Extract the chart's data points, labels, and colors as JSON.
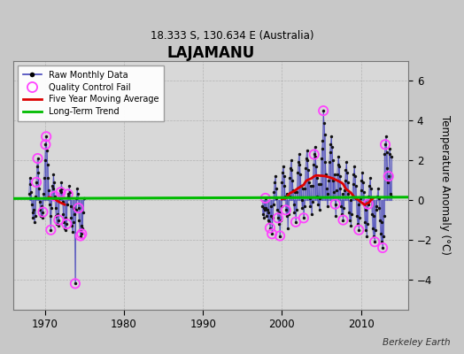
{
  "title": "LAJAMANU",
  "subtitle": "18.333 S, 130.634 E (Australia)",
  "ylabel": "Temperature Anomaly (°C)",
  "credit": "Berkeley Earth",
  "xlim": [
    1966,
    2016
  ],
  "ylim": [
    -5.5,
    7.0
  ],
  "yticks": [
    -4,
    -2,
    0,
    2,
    4,
    6
  ],
  "xticks": [
    1970,
    1980,
    1990,
    2000,
    2010
  ],
  "fig_bg": "#c8c8c8",
  "plot_bg": "#d8d8d8",
  "line_color": "#4444bb",
  "dot_color": "#111111",
  "qc_color": "#ff44ff",
  "ma_color": "#dd0000",
  "trend_color": "#00bb00",
  "early_data": [
    [
      1968.0,
      0.3
    ],
    [
      1968.083,
      1.1
    ],
    [
      1968.167,
      0.8
    ],
    [
      1968.25,
      0.4
    ],
    [
      1968.333,
      -0.2
    ],
    [
      1968.417,
      -0.6
    ],
    [
      1968.5,
      -0.9
    ],
    [
      1968.583,
      -0.5
    ],
    [
      1968.667,
      -1.1
    ],
    [
      1968.75,
      -0.8
    ],
    [
      1968.833,
      0.2
    ],
    [
      1968.917,
      0.9
    ],
    [
      1969.0,
      1.7
    ],
    [
      1969.083,
      2.1
    ],
    [
      1969.167,
      1.4
    ],
    [
      1969.25,
      0.6
    ],
    [
      1969.333,
      -0.1
    ],
    [
      1969.417,
      -0.5
    ],
    [
      1969.5,
      -0.8
    ],
    [
      1969.583,
      -0.3
    ],
    [
      1969.667,
      -0.9
    ],
    [
      1969.75,
      -0.6
    ],
    [
      1969.833,
      0.3
    ],
    [
      1969.917,
      1.1
    ],
    [
      1970.0,
      2.0
    ],
    [
      1970.083,
      2.8
    ],
    [
      1970.167,
      3.2
    ],
    [
      1970.25,
      2.5
    ],
    [
      1970.333,
      1.8
    ],
    [
      1970.417,
      1.1
    ],
    [
      1970.5,
      0.5
    ],
    [
      1970.583,
      -0.2
    ],
    [
      1970.667,
      -0.8
    ],
    [
      1970.75,
      -1.5
    ],
    [
      1970.833,
      -0.4
    ],
    [
      1970.917,
      0.7
    ],
    [
      1971.0,
      0.6
    ],
    [
      1971.083,
      1.3
    ],
    [
      1971.167,
      0.9
    ],
    [
      1971.25,
      0.2
    ],
    [
      1971.333,
      -0.4
    ],
    [
      1971.417,
      -0.8
    ],
    [
      1971.5,
      -1.2
    ],
    [
      1971.583,
      -0.7
    ],
    [
      1971.667,
      -1.3
    ],
    [
      1971.75,
      -1.0
    ],
    [
      1971.833,
      0.1
    ],
    [
      1971.917,
      0.5
    ],
    [
      1972.0,
      0.4
    ],
    [
      1972.083,
      0.9
    ],
    [
      1972.167,
      0.6
    ],
    [
      1972.25,
      -0.1
    ],
    [
      1972.333,
      -0.7
    ],
    [
      1972.417,
      -1.1
    ],
    [
      1972.5,
      -1.4
    ],
    [
      1972.583,
      -0.9
    ],
    [
      1972.667,
      -1.5
    ],
    [
      1972.75,
      -1.2
    ],
    [
      1972.833,
      -0.2
    ],
    [
      1972.917,
      0.3
    ],
    [
      1973.0,
      0.2
    ],
    [
      1973.083,
      0.7
    ],
    [
      1973.167,
      0.4
    ],
    [
      1973.25,
      -0.3
    ],
    [
      1973.333,
      -0.9
    ],
    [
      1973.417,
      -1.3
    ],
    [
      1973.5,
      -1.6
    ],
    [
      1973.583,
      -1.1
    ],
    [
      1973.667,
      -0.4
    ],
    [
      1973.75,
      -0.7
    ],
    [
      1973.833,
      -4.2
    ],
    [
      1973.917,
      -0.5
    ],
    [
      1974.0,
      0.1
    ],
    [
      1974.083,
      0.6
    ],
    [
      1974.167,
      0.3
    ],
    [
      1974.25,
      -0.4
    ],
    [
      1974.333,
      -1.0
    ],
    [
      1974.417,
      -1.5
    ],
    [
      1974.5,
      -1.8
    ],
    [
      1974.583,
      -1.3
    ],
    [
      1974.667,
      -1.7
    ],
    [
      1974.75,
      -1.4
    ],
    [
      1974.833,
      -0.6
    ],
    [
      1974.917,
      0.1
    ]
  ],
  "late_data": [
    [
      1997.5,
      -0.3
    ],
    [
      1997.583,
      -0.7
    ],
    [
      1997.667,
      -0.4
    ],
    [
      1997.75,
      -0.9
    ],
    [
      1997.833,
      -0.5
    ],
    [
      1997.917,
      0.1
    ],
    [
      1998.0,
      -0.4
    ],
    [
      1998.083,
      -0.8
    ],
    [
      1998.167,
      -0.5
    ],
    [
      1998.25,
      -1.0
    ],
    [
      1998.333,
      -0.6
    ],
    [
      1998.417,
      -1.1
    ],
    [
      1998.5,
      -1.4
    ],
    [
      1998.583,
      -0.8
    ],
    [
      1998.667,
      -0.3
    ],
    [
      1998.75,
      -1.7
    ],
    [
      1998.833,
      -0.9
    ],
    [
      1998.917,
      -0.2
    ],
    [
      1999.0,
      0.4
    ],
    [
      1999.083,
      0.9
    ],
    [
      1999.167,
      1.2
    ],
    [
      1999.25,
      0.6
    ],
    [
      1999.333,
      0.1
    ],
    [
      1999.417,
      -0.5
    ],
    [
      1999.5,
      -0.9
    ],
    [
      1999.583,
      -1.2
    ],
    [
      1999.667,
      -0.6
    ],
    [
      1999.75,
      -1.8
    ],
    [
      1999.833,
      -1.0
    ],
    [
      1999.917,
      -0.3
    ],
    [
      2000.0,
      0.9
    ],
    [
      2000.083,
      1.4
    ],
    [
      2000.167,
      1.7
    ],
    [
      2000.25,
      1.2
    ],
    [
      2000.333,
      0.7
    ],
    [
      2000.417,
      0.2
    ],
    [
      2000.5,
      -0.5
    ],
    [
      2000.583,
      -0.8
    ],
    [
      2000.667,
      0.3
    ],
    [
      2000.75,
      -1.4
    ],
    [
      2000.833,
      -0.7
    ],
    [
      2000.917,
      0.2
    ],
    [
      2001.0,
      1.1
    ],
    [
      2001.083,
      1.6
    ],
    [
      2001.167,
      2.0
    ],
    [
      2001.25,
      1.5
    ],
    [
      2001.333,
      1.0
    ],
    [
      2001.417,
      0.5
    ],
    [
      2001.5,
      -0.2
    ],
    [
      2001.583,
      -0.6
    ],
    [
      2001.667,
      0.4
    ],
    [
      2001.75,
      -1.1
    ],
    [
      2001.833,
      -0.5
    ],
    [
      2001.917,
      0.4
    ],
    [
      2002.0,
      1.4
    ],
    [
      2002.083,
      1.9
    ],
    [
      2002.167,
      2.3
    ],
    [
      2002.25,
      1.8
    ],
    [
      2002.333,
      1.3
    ],
    [
      2002.417,
      0.7
    ],
    [
      2002.5,
      0.0
    ],
    [
      2002.583,
      -0.4
    ],
    [
      2002.667,
      0.6
    ],
    [
      2002.75,
      -0.9
    ],
    [
      2002.833,
      -0.3
    ],
    [
      2002.917,
      0.6
    ],
    [
      2003.0,
      1.6
    ],
    [
      2003.083,
      2.1
    ],
    [
      2003.167,
      2.5
    ],
    [
      2003.25,
      2.0
    ],
    [
      2003.333,
      1.5
    ],
    [
      2003.417,
      0.9
    ],
    [
      2003.5,
      0.1
    ],
    [
      2003.583,
      -0.3
    ],
    [
      2003.667,
      0.7
    ],
    [
      2003.75,
      -0.7
    ],
    [
      2003.833,
      -0.1
    ],
    [
      2003.917,
      0.7
    ],
    [
      2004.0,
      1.8
    ],
    [
      2004.083,
      2.3
    ],
    [
      2004.167,
      2.7
    ],
    [
      2004.25,
      2.2
    ],
    [
      2004.333,
      1.7
    ],
    [
      2004.417,
      1.1
    ],
    [
      2004.5,
      0.2
    ],
    [
      2004.583,
      -0.2
    ],
    [
      2004.667,
      0.8
    ],
    [
      2004.75,
      -0.5
    ],
    [
      2004.833,
      0.1
    ],
    [
      2004.917,
      0.8
    ],
    [
      2005.0,
      2.1
    ],
    [
      2005.083,
      2.6
    ],
    [
      2005.167,
      3.0
    ],
    [
      2005.25,
      4.5
    ],
    [
      2005.333,
      3.9
    ],
    [
      2005.417,
      3.3
    ],
    [
      2005.5,
      1.9
    ],
    [
      2005.583,
      1.3
    ],
    [
      2005.667,
      0.6
    ],
    [
      2005.75,
      -0.3
    ],
    [
      2005.833,
      0.3
    ],
    [
      2005.917,
      1.0
    ],
    [
      2006.0,
      1.9
    ],
    [
      2006.083,
      2.4
    ],
    [
      2006.167,
      2.8
    ],
    [
      2006.25,
      3.2
    ],
    [
      2006.333,
      2.7
    ],
    [
      2006.417,
      2.0
    ],
    [
      2006.5,
      1.0
    ],
    [
      2006.583,
      0.4
    ],
    [
      2006.667,
      1.3
    ],
    [
      2006.75,
      -0.2
    ],
    [
      2006.833,
      -0.8
    ],
    [
      2006.917,
      0.5
    ],
    [
      2007.0,
      1.3
    ],
    [
      2007.083,
      1.8
    ],
    [
      2007.167,
      2.2
    ],
    [
      2007.25,
      1.7
    ],
    [
      2007.333,
      1.2
    ],
    [
      2007.417,
      0.6
    ],
    [
      2007.5,
      -0.3
    ],
    [
      2007.583,
      -0.7
    ],
    [
      2007.667,
      0.3
    ],
    [
      2007.75,
      -1.0
    ],
    [
      2007.833,
      -0.4
    ],
    [
      2007.917,
      0.5
    ],
    [
      2008.0,
      1.0
    ],
    [
      2008.083,
      1.5
    ],
    [
      2008.167,
      1.9
    ],
    [
      2008.25,
      1.4
    ],
    [
      2008.333,
      0.9
    ],
    [
      2008.417,
      0.3
    ],
    [
      2008.5,
      -0.6
    ],
    [
      2008.583,
      -1.0
    ],
    [
      2008.667,
      0.0
    ],
    [
      2008.75,
      -1.3
    ],
    [
      2008.833,
      -0.7
    ],
    [
      2008.917,
      0.2
    ],
    [
      2009.0,
      0.8
    ],
    [
      2009.083,
      1.3
    ],
    [
      2009.167,
      1.7
    ],
    [
      2009.25,
      1.2
    ],
    [
      2009.333,
      0.7
    ],
    [
      2009.417,
      0.1
    ],
    [
      2009.5,
      -0.8
    ],
    [
      2009.583,
      -1.2
    ],
    [
      2009.667,
      -0.2
    ],
    [
      2009.75,
      -1.5
    ],
    [
      2009.833,
      -0.9
    ],
    [
      2009.917,
      0.1
    ],
    [
      2010.0,
      0.5
    ],
    [
      2010.083,
      1.0
    ],
    [
      2010.167,
      1.4
    ],
    [
      2010.25,
      0.9
    ],
    [
      2010.333,
      0.4
    ],
    [
      2010.417,
      -0.2
    ],
    [
      2010.5,
      -1.1
    ],
    [
      2010.583,
      -1.5
    ],
    [
      2010.667,
      -0.5
    ],
    [
      2010.75,
      -1.8
    ],
    [
      2010.833,
      -1.2
    ],
    [
      2010.917,
      -0.2
    ],
    [
      2011.0,
      0.2
    ],
    [
      2011.083,
      0.7
    ],
    [
      2011.167,
      1.1
    ],
    [
      2011.25,
      0.6
    ],
    [
      2011.333,
      0.1
    ],
    [
      2011.417,
      -0.7
    ],
    [
      2011.5,
      -1.4
    ],
    [
      2011.583,
      -1.8
    ],
    [
      2011.667,
      -0.8
    ],
    [
      2011.75,
      -2.1
    ],
    [
      2011.833,
      -1.5
    ],
    [
      2011.917,
      -0.5
    ],
    [
      2012.0,
      -0.3
    ],
    [
      2012.083,
      0.2
    ],
    [
      2012.167,
      0.6
    ],
    [
      2012.25,
      0.1
    ],
    [
      2012.333,
      -0.4
    ],
    [
      2012.417,
      -1.0
    ],
    [
      2012.5,
      -1.7
    ],
    [
      2012.583,
      -2.1
    ],
    [
      2012.667,
      -1.1
    ],
    [
      2012.75,
      -2.4
    ],
    [
      2012.833,
      -1.8
    ],
    [
      2012.917,
      -0.8
    ],
    [
      2013.0,
      2.3
    ],
    [
      2013.083,
      2.8
    ],
    [
      2013.167,
      3.2
    ],
    [
      2013.25,
      2.4
    ],
    [
      2013.333,
      1.6
    ],
    [
      2013.417,
      0.9
    ],
    [
      2013.5,
      1.2
    ],
    [
      2013.583,
      2.3
    ],
    [
      2013.667,
      2.6
    ],
    [
      2013.75,
      0.3
    ],
    [
      2013.833,
      0.2
    ],
    [
      2013.917,
      2.2
    ]
  ],
  "qc_early_x": [
    1968.917,
    1969.083,
    1969.75,
    1970.083,
    1970.167,
    1970.75,
    1971.25,
    1971.75,
    1972.0,
    1972.75,
    1972.917,
    1973.833,
    1974.25,
    1974.5,
    1974.667
  ],
  "qc_late_x": [
    1997.917,
    1998.5,
    1998.75,
    1999.5,
    1999.75,
    2000.5,
    2001.75,
    2002.75,
    2004.083,
    2005.25,
    2006.75,
    2007.75,
    2009.75,
    2010.917,
    2011.75,
    2012.75,
    2013.083,
    2013.5
  ]
}
